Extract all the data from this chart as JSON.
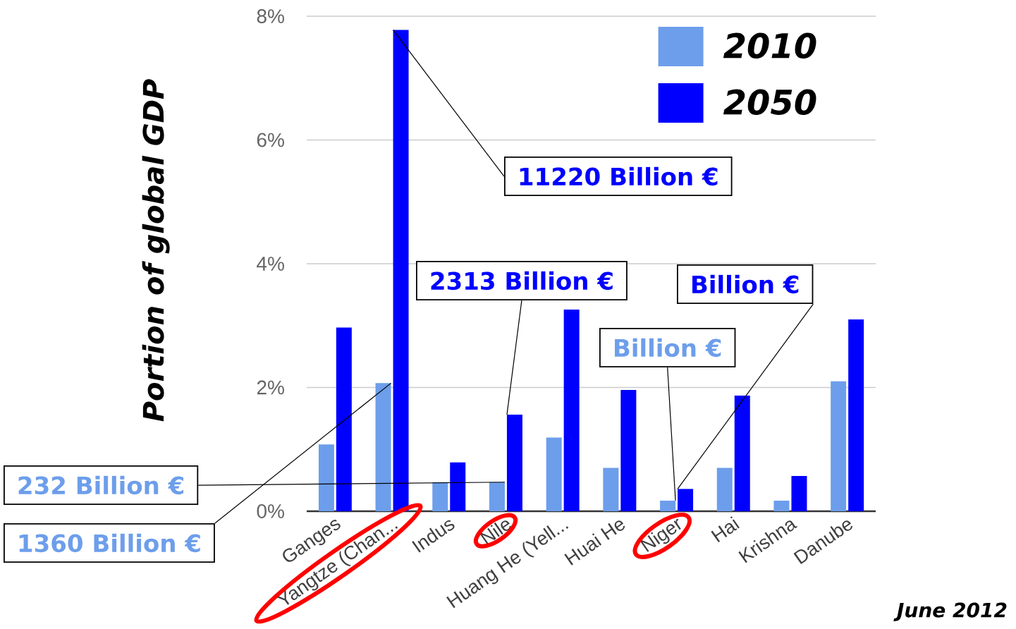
{
  "chart_data": {
    "type": "bar",
    "ylabel": "Portion of global GDP",
    "categories": [
      "Ganges",
      "Yangtze (Chan...",
      "Indus",
      "Nile",
      "Huang He (Yell...",
      "Huai He",
      "Niger",
      "Hai",
      "Krishna",
      "Danube"
    ],
    "series": [
      {
        "name": "2010",
        "color": "#6d9eeb",
        "values": [
          1.08,
          2.07,
          0.47,
          0.47,
          1.19,
          0.7,
          0.17,
          0.7,
          0.17,
          2.1
        ]
      },
      {
        "name": "2050",
        "color": "#0000ff",
        "values": [
          2.97,
          7.78,
          0.79,
          1.56,
          3.26,
          1.96,
          0.36,
          1.87,
          0.57,
          3.1
        ]
      }
    ],
    "ylim": [
      0,
      8
    ],
    "yticks": [
      {
        "value": 0,
        "label": "0%"
      },
      {
        "value": 2,
        "label": "2%"
      },
      {
        "value": 4,
        "label": "4%"
      },
      {
        "value": 6,
        "label": "6%"
      },
      {
        "value": 8,
        "label": "8%"
      }
    ],
    "grid": "y",
    "legend": "top right",
    "annotations": [
      {
        "text": "1360 Billion €",
        "x": "Yangtze (Chan...",
        "y": 2.07
      },
      {
        "text": "11220 Billion €",
        "x": "Yangtze (Chan...",
        "y": 7.78
      },
      {
        "text": "232 Billion €",
        "x": "Nile",
        "y": 0.47
      },
      {
        "text": "2313 Billion €",
        "x": "Nile",
        "y": 1.56
      },
      {
        "text": "Billion €",
        "x": "Niger",
        "y": 0.17
      },
      {
        "text": "Billion €",
        "x": "Niger",
        "y": 0.36
      },
      "June 2012"
    ]
  }
}
